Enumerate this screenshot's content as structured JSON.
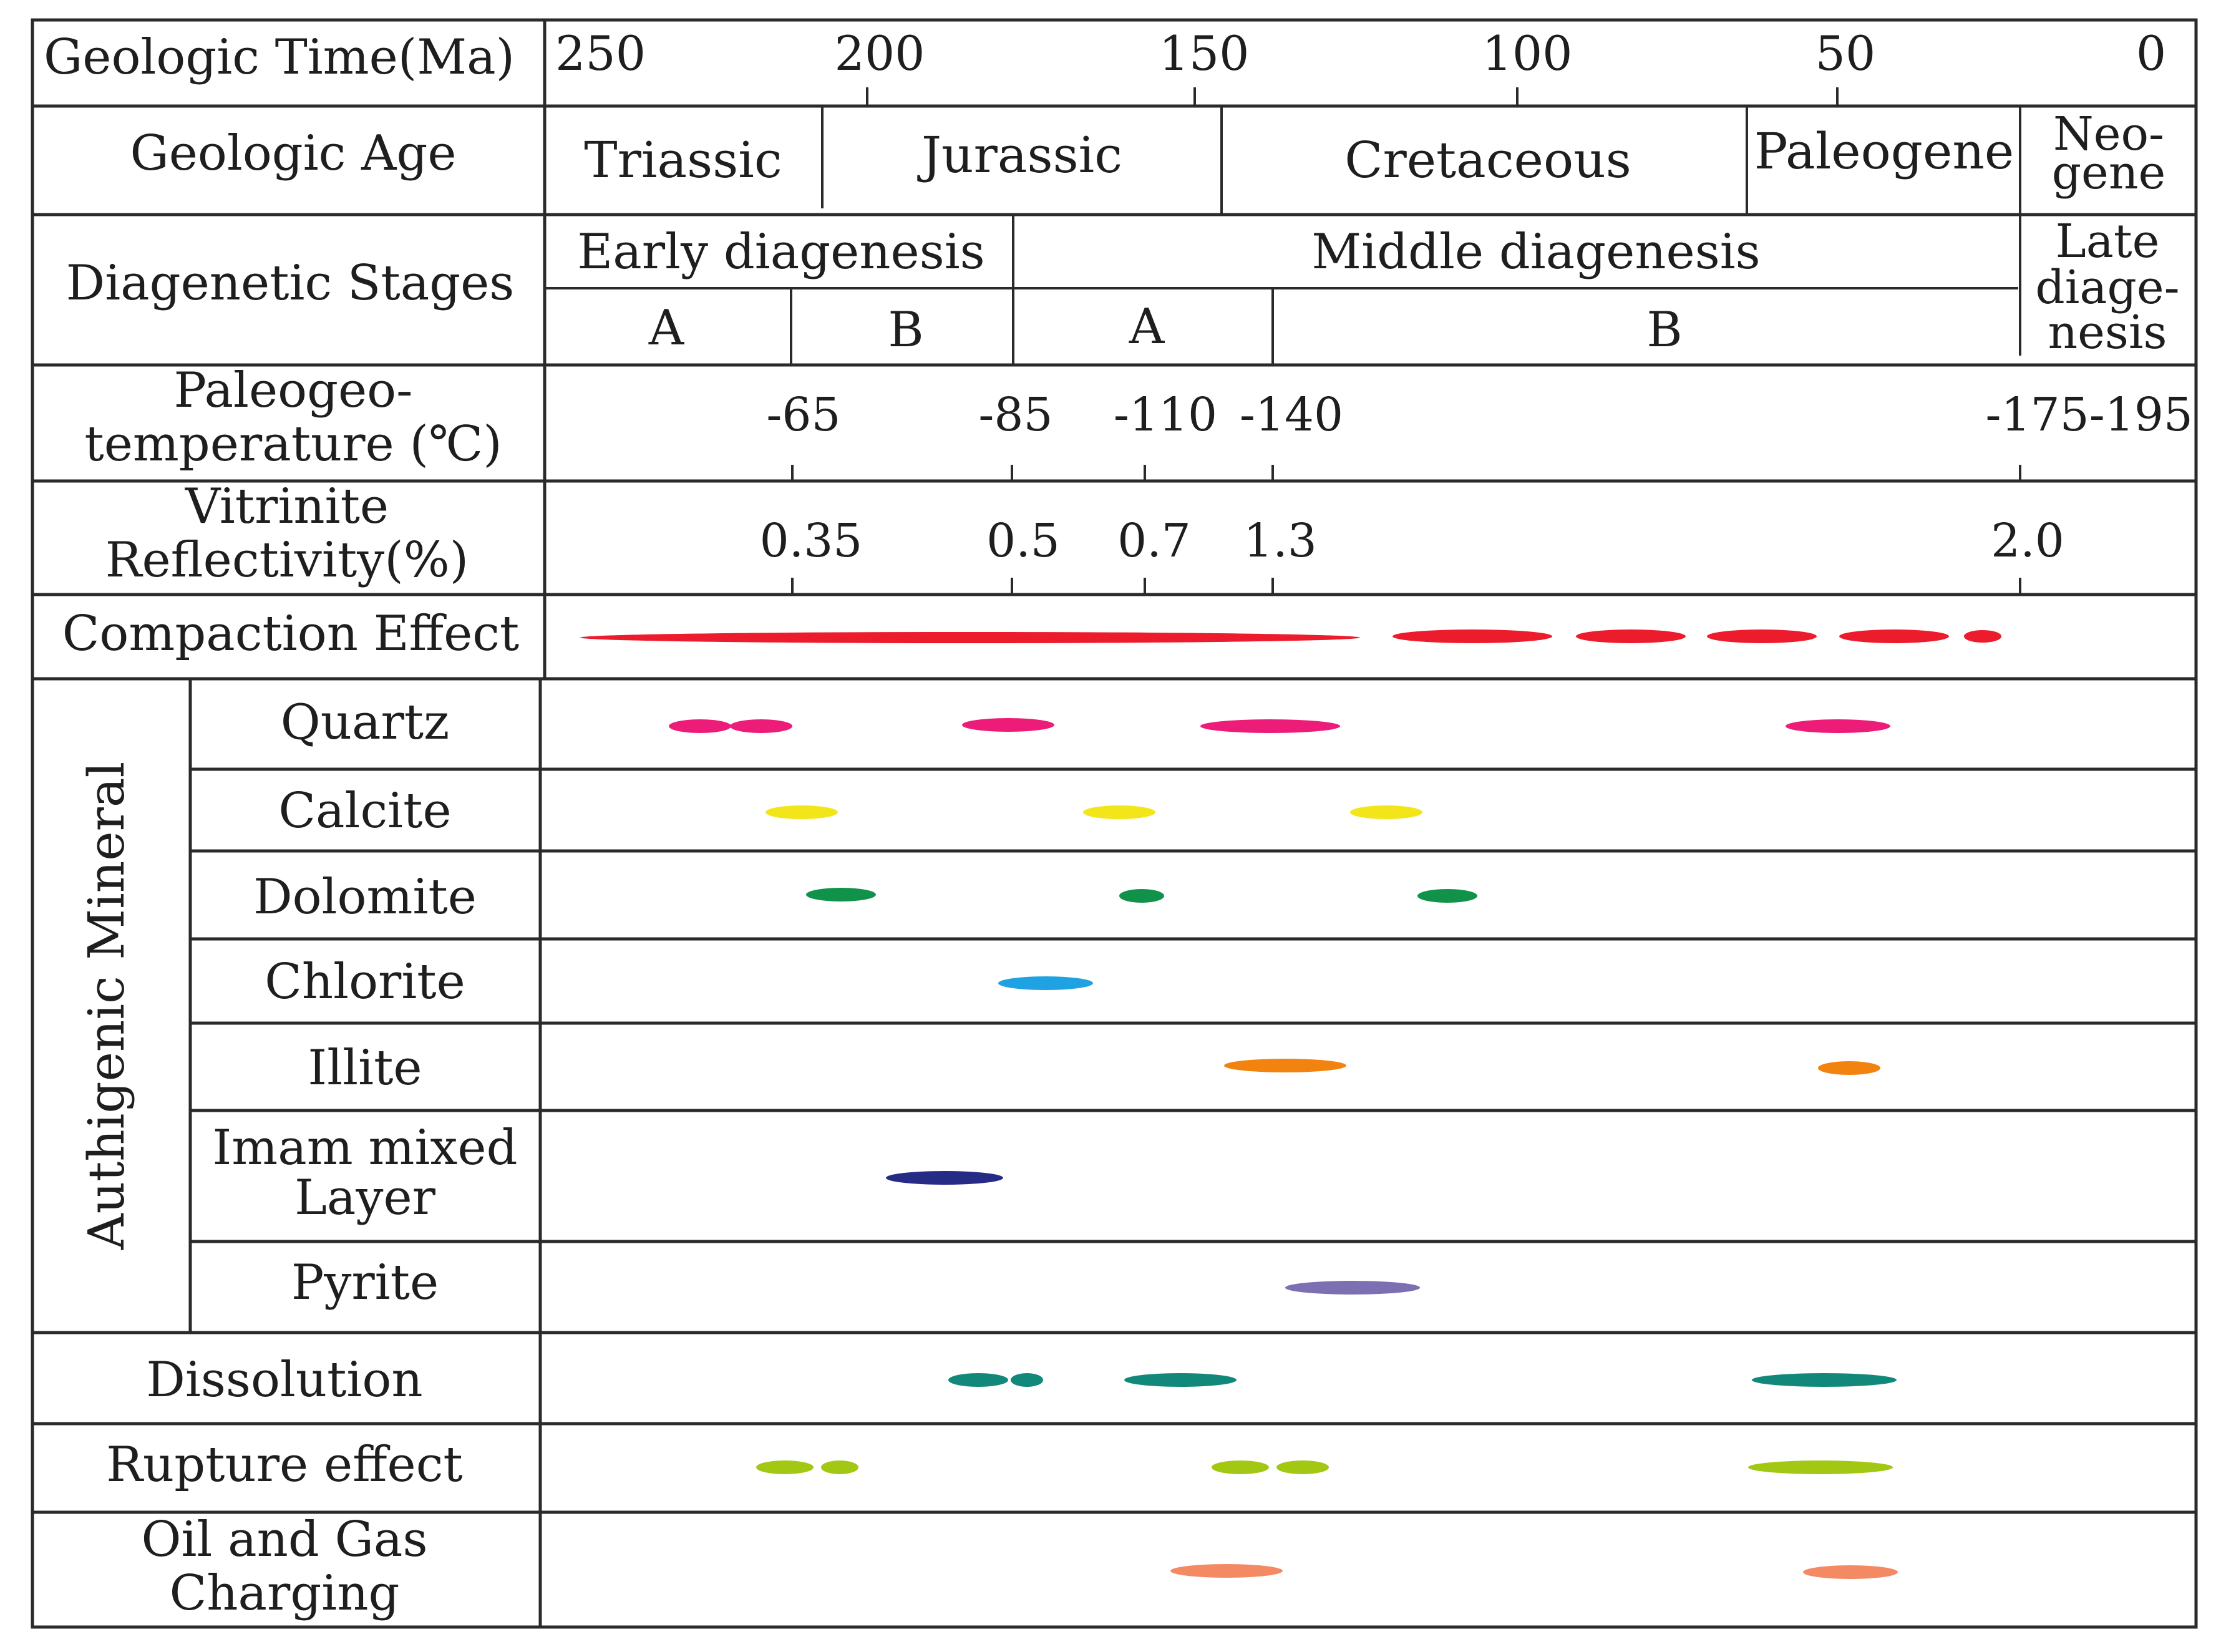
{
  "header": {
    "time_label": "Geologic Time(Ma)",
    "age_label": "Geologic Age",
    "stages_label": "Diagenetic Stages",
    "paleotemp_label_line1": "Paleogeo-",
    "paleotemp_label_line2": "temperature (℃)",
    "vitrinite_label_line1": "Vitrinite",
    "vitrinite_label_line2": "Reflectivity(%)"
  },
  "time_ticks": [
    "250",
    "200",
    "150",
    "100",
    "50",
    "0"
  ],
  "ages": {
    "triassic": "Triassic",
    "jurassic": "Jurassic",
    "cretaceous": "Cretaceous",
    "paleogene": "Paleogene",
    "neogene_line1": "Neo-",
    "neogene_line2": "gene"
  },
  "stages": {
    "early": "Early diagenesis",
    "middle": "Middle diagenesis",
    "late_line1": "Late",
    "late_line2": "diage-",
    "late_line3": "nesis",
    "early_a": "A",
    "early_b": "B",
    "middle_a": "A",
    "middle_b": "B"
  },
  "paleotemp_values": [
    "-65",
    "-85",
    "-110",
    "-140",
    "-175-195"
  ],
  "vitrinite_values": [
    "0.35",
    "0.5",
    "0.7",
    "1.3",
    "2.0"
  ],
  "rows": {
    "compaction": "Compaction Effect",
    "authigenic_group": "Authigenic Mineral",
    "quartz": "Quartz",
    "calcite": "Calcite",
    "dolomite": "Dolomite",
    "chlorite": "Chlorite",
    "illite": "Illite",
    "imam_line1": "Imam mixed",
    "imam_line2": "Layer",
    "pyrite": "Pyrite",
    "dissolution": "Dissolution",
    "rupture": "Rupture effect",
    "oil_line1": "Oil and Gas",
    "oil_line2": "Charging"
  },
  "colors": {
    "compaction": "#ec1c2c",
    "quartz": "#ec1c78",
    "calcite": "#f2e61a",
    "dolomite": "#10924a",
    "chlorite": "#1ea2e2",
    "illite": "#f2830f",
    "imam": "#262b86",
    "pyrite": "#7d70b2",
    "dissolution": "#11887a",
    "rupture": "#a2c814",
    "oil": "#f48a64"
  }
}
